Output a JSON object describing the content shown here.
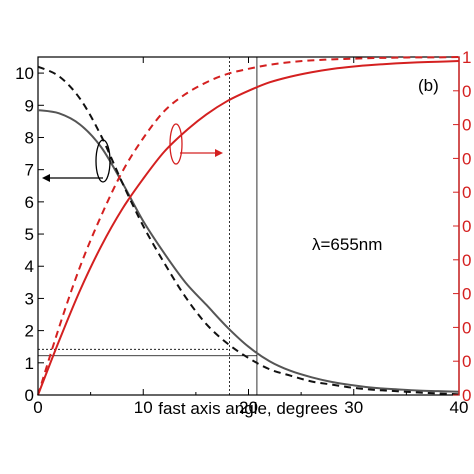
{
  "chart_data": {
    "type": "line",
    "xlabel": "fast axis angle, degrees",
    "xlim": [
      0,
      40
    ],
    "ylim_left": [
      0,
      10.5
    ],
    "ylim_right": [
      0,
      1
    ],
    "x_ticks": [
      "0",
      "10",
      "20",
      "30",
      "40"
    ],
    "y_ticks_left": [
      "0",
      "1",
      "2",
      "3",
      "4",
      "5",
      "6",
      "7",
      "8",
      "9",
      "10"
    ],
    "y_ticks_right": [
      "0",
      "0",
      "0",
      "0",
      "0",
      "0",
      "0",
      "0",
      "0",
      "0",
      "1"
    ],
    "panel_label": "(b)",
    "annotation": "λ=655nm",
    "grid": false,
    "series": [
      {
        "axis": "left",
        "style": "solid",
        "color": "#555555",
        "x": [
          0,
          2,
          4,
          6,
          8,
          10,
          12,
          14,
          16,
          18,
          20,
          22,
          24,
          26,
          28,
          30,
          32,
          34,
          36,
          38,
          40
        ],
        "y": [
          8.85,
          8.75,
          8.4,
          7.7,
          6.6,
          5.4,
          4.4,
          3.5,
          2.8,
          2.1,
          1.5,
          1.05,
          0.75,
          0.55,
          0.4,
          0.3,
          0.22,
          0.18,
          0.14,
          0.12,
          0.1
        ]
      },
      {
        "axis": "left",
        "style": "dashed",
        "color": "#111111",
        "x": [
          0,
          2,
          4,
          6,
          8,
          10,
          12,
          14,
          16,
          18,
          20,
          22,
          24,
          26,
          28,
          30,
          32,
          34,
          36,
          38,
          40
        ],
        "y": [
          10.2,
          9.9,
          9.2,
          8.05,
          6.6,
          5.25,
          4.1,
          3.05,
          2.2,
          1.6,
          1.15,
          0.8,
          0.6,
          0.42,
          0.32,
          0.22,
          0.16,
          0.12,
          0.08,
          0.05,
          0.02
        ]
      },
      {
        "axis": "right",
        "style": "solid",
        "color": "#d42020",
        "x": [
          0,
          2,
          4,
          6,
          8,
          10,
          12,
          14,
          16,
          18,
          20,
          22,
          24,
          26,
          28,
          30,
          32,
          34,
          36,
          38,
          40
        ],
        "y": [
          0.0,
          0.16,
          0.31,
          0.44,
          0.55,
          0.64,
          0.72,
          0.78,
          0.83,
          0.87,
          0.9,
          0.925,
          0.942,
          0.955,
          0.965,
          0.972,
          0.977,
          0.981,
          0.984,
          0.986,
          0.988
        ]
      },
      {
        "axis": "right",
        "style": "dashed",
        "color": "#d42020",
        "x": [
          0,
          2,
          4,
          6,
          8,
          10,
          12,
          14,
          16,
          18,
          20,
          22,
          24,
          26,
          28,
          30,
          32,
          34,
          36,
          38,
          40
        ],
        "y": [
          0.0,
          0.2,
          0.38,
          0.53,
          0.66,
          0.76,
          0.84,
          0.89,
          0.925,
          0.95,
          0.965,
          0.977,
          0.985,
          0.99,
          0.993,
          0.995,
          0.997,
          0.998,
          0.999,
          0.999,
          1.0
        ]
      }
    ],
    "reference_lines": {
      "vertical_x": [
        18.2,
        20.8
      ],
      "horizontal_y_left": [
        1.42,
        1.22
      ]
    },
    "colors": {
      "axis_left": "#000000",
      "axis_right": "#d42020",
      "gray_curve": "#555555"
    }
  }
}
